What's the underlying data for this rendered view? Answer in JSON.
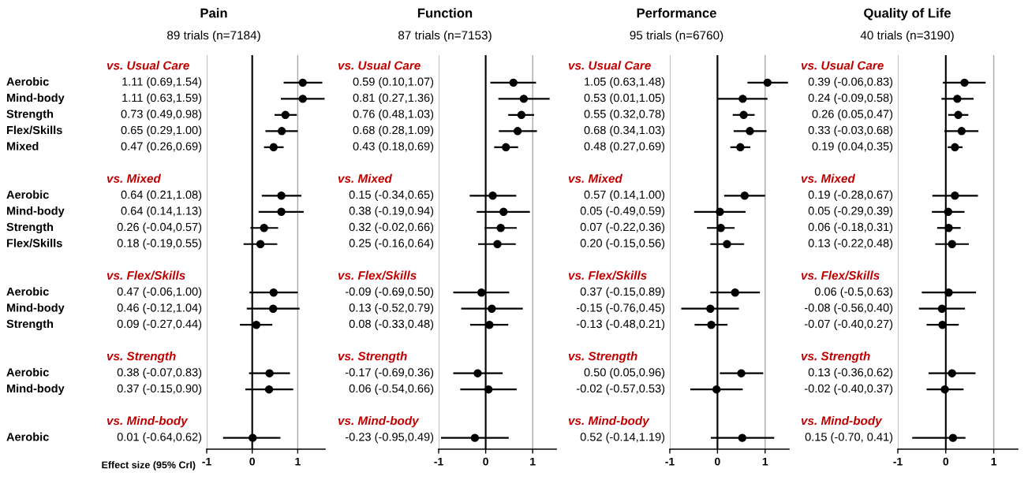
{
  "chart_data": [
    {
      "type": "scatter",
      "orientation": "horizontal",
      "title": "Pain",
      "subtitle": "89 trials (n=7184)",
      "xlabel": "Effect size (95% CrI)",
      "color": "#000000",
      "marker": "circle",
      "grid": "x",
      "tick_labels": "x",
      "xlim": [
        -1,
        1.6
      ],
      "xticks": [
        -1,
        0,
        1
      ],
      "ref_lines": [
        {
          "axis": "x",
          "value": 0,
          "color": "#000000"
        }
      ],
      "categories": [
        "vs. Usual Care",
        "Aerobic",
        "Mind-body",
        "Strength",
        "Flex/Skills",
        "Mixed",
        null,
        "vs. Mixed",
        "Aerobic",
        "Mind-body",
        "Strength",
        "Flex/Skills",
        null,
        "vs. Flex/Skills",
        "Aerobic",
        "Mind-body",
        "Strength",
        null,
        "vs. Strength",
        "Aerobic",
        "Mind-body",
        null,
        "vs. Mind-body",
        "Aerobic"
      ],
      "values": [
        null,
        1.11,
        1.11,
        0.73,
        0.65,
        0.47,
        null,
        null,
        0.64,
        0.64,
        0.26,
        0.18,
        null,
        null,
        0.47,
        0.46,
        0.09,
        null,
        null,
        0.38,
        0.37,
        null,
        null,
        0.01
      ],
      "errors": [
        null,
        [
          0.69,
          1.54
        ],
        [
          0.63,
          1.59
        ],
        [
          0.49,
          0.98
        ],
        [
          0.29,
          1.0
        ],
        [
          0.26,
          0.69
        ],
        null,
        null,
        [
          0.21,
          1.08
        ],
        [
          0.14,
          1.13
        ],
        [
          -0.04,
          0.57
        ],
        [
          -0.19,
          0.55
        ],
        null,
        null,
        [
          -0.06,
          1.0
        ],
        [
          -0.12,
          1.04
        ],
        [
          -0.27,
          0.44
        ],
        null,
        null,
        [
          -0.07,
          0.83
        ],
        [
          -0.15,
          0.9
        ],
        null,
        null,
        [
          -0.64,
          0.62
        ]
      ],
      "value_labels": [
        null,
        "1.11 (0.69,1.54)",
        "1.11 (0.63,1.59)",
        "0.73 (0.49,0.98)",
        "0.65 (0.29,1.00)",
        "0.47 (0.26,0.69)",
        null,
        null,
        "0.64 (0.21,1.08)",
        "0.64 (0.14,1.13)",
        "0.26 (-0.04,0.57)",
        "0.18 (-0.19,0.55)",
        null,
        null,
        "0.47 (-0.06,1.00)",
        "0.46 (-0.12,1.04)",
        "0.09 (-0.27,0.44)",
        null,
        null,
        "0.38 (-0.07,0.83)",
        "0.37 (-0.15,0.90)",
        null,
        null,
        "0.01 (-0.64,0.62)"
      ]
    },
    {
      "type": "scatter",
      "orientation": "horizontal",
      "title": "Function",
      "subtitle": "87 trials (n=7153)",
      "color": "#000000",
      "marker": "circle",
      "grid": "x",
      "tick_labels": "x",
      "xlim": [
        -1,
        1.5
      ],
      "xticks": [
        -1,
        0,
        1
      ],
      "ref_lines": [
        {
          "axis": "x",
          "value": 0,
          "color": "#000000"
        }
      ],
      "categories": [
        "vs. Usual Care",
        null,
        null,
        null,
        null,
        null,
        null,
        "vs. Mixed",
        null,
        null,
        null,
        null,
        null,
        "vs. Flex/Skills",
        null,
        null,
        null,
        null,
        "vs. Strength",
        null,
        null,
        null,
        "vs. Mind-body",
        null
      ],
      "values": [
        null,
        0.59,
        0.81,
        0.76,
        0.68,
        0.43,
        null,
        null,
        0.15,
        0.38,
        0.32,
        0.25,
        null,
        null,
        -0.09,
        0.13,
        0.08,
        null,
        null,
        -0.17,
        0.06,
        null,
        null,
        -0.23
      ],
      "errors": [
        null,
        [
          0.1,
          1.07
        ],
        [
          0.27,
          1.36
        ],
        [
          0.48,
          1.03
        ],
        [
          0.28,
          1.09
        ],
        [
          0.18,
          0.69
        ],
        null,
        null,
        [
          -0.34,
          0.65
        ],
        [
          -0.19,
          0.94
        ],
        [
          -0.02,
          0.66
        ],
        [
          -0.16,
          0.64
        ],
        null,
        null,
        [
          -0.69,
          0.5
        ],
        [
          -0.52,
          0.79
        ],
        [
          -0.33,
          0.48
        ],
        null,
        null,
        [
          -0.69,
          0.36
        ],
        [
          -0.54,
          0.66
        ],
        null,
        null,
        [
          -0.95,
          0.49
        ]
      ],
      "value_labels": [
        null,
        "0.59 (0.10,1.07)",
        "0.81 (0.27,1.36)",
        "0.76 (0.48,1.03)",
        "0.68 (0.28,1.09)",
        "0.43 (0.18,0.69)",
        null,
        null,
        "0.15 (-0.34,0.65)",
        "0.38 (-0.19,0.94)",
        "0.32 (-0.02,0.66)",
        "0.25 (-0.16,0.64)",
        null,
        null,
        "-0.09 (-0.69,0.50)",
        "0.13 (-0.52,0.79)",
        "0.08 (-0.33,0.48)",
        null,
        null,
        "-0.17 (-0.69,0.36)",
        "0.06 (-0.54,0.66)",
        null,
        null,
        "-0.23 (-0.95,0.49)"
      ]
    },
    {
      "type": "scatter",
      "orientation": "horizontal",
      "title": "Performance",
      "subtitle": "95 trials (n=6760)",
      "color": "#000000",
      "marker": "circle",
      "grid": "x",
      "tick_labels": "x",
      "xlim": [
        -1,
        1.5
      ],
      "xticks": [
        -1,
        0,
        1
      ],
      "ref_lines": [
        {
          "axis": "x",
          "value": 0,
          "color": "#000000"
        }
      ],
      "categories": [
        "vs. Usual Care",
        null,
        null,
        null,
        null,
        null,
        null,
        "vs. Mixed",
        null,
        null,
        null,
        null,
        null,
        "vs. Flex/Skills",
        null,
        null,
        null,
        null,
        "vs. Strength",
        null,
        null,
        null,
        "vs. Mind-body",
        null
      ],
      "values": [
        null,
        1.05,
        0.53,
        0.55,
        0.68,
        0.48,
        null,
        null,
        0.57,
        0.05,
        0.07,
        0.2,
        null,
        null,
        0.37,
        -0.15,
        -0.13,
        null,
        null,
        0.5,
        -0.02,
        null,
        null,
        0.52
      ],
      "errors": [
        null,
        [
          0.63,
          1.48
        ],
        [
          0.01,
          1.05
        ],
        [
          0.32,
          0.78
        ],
        [
          0.34,
          1.03
        ],
        [
          0.27,
          0.69
        ],
        null,
        null,
        [
          0.14,
          1.0
        ],
        [
          -0.49,
          0.59
        ],
        [
          -0.22,
          0.36
        ],
        [
          -0.15,
          0.56
        ],
        null,
        null,
        [
          -0.15,
          0.89
        ],
        [
          -0.76,
          0.45
        ],
        [
          -0.48,
          0.21
        ],
        null,
        null,
        [
          0.05,
          0.96
        ],
        [
          -0.57,
          0.53
        ],
        null,
        null,
        [
          -0.14,
          1.19
        ]
      ],
      "value_labels": [
        null,
        "1.05 (0.63,1.48)",
        "0.53 (0.01,1.05)",
        "0.55 (0.32,0.78)",
        "0.68 (0.34,1.03)",
        "0.48 (0.27,0.69)",
        null,
        null,
        "0.57 (0.14,1.00)",
        "0.05 (-0.49,0.59)",
        "0.07 (-0.22,0.36)",
        "0.20 (-0.15,0.56)",
        null,
        null,
        "0.37 (-0.15,0.89)",
        "-0.15 (-0.76,0.45)",
        "-0.13 (-0.48,0.21)",
        null,
        null,
        "0.50 (0.05,0.96)",
        "-0.02 (-0.57,0.53)",
        null,
        null,
        "0.52 (-0.14,1.19)"
      ]
    },
    {
      "type": "scatter",
      "orientation": "horizontal",
      "title": "Quality of Life",
      "subtitle": "40 trials (n=3190)",
      "color": "#000000",
      "marker": "circle",
      "grid": "x",
      "tick_labels": "x",
      "xlim": [
        -1,
        1.5
      ],
      "xticks": [
        -1,
        0,
        1
      ],
      "ref_lines": [
        {
          "axis": "x",
          "value": 0,
          "color": "#000000"
        }
      ],
      "categories": [
        "vs. Usual Care",
        null,
        null,
        null,
        null,
        null,
        null,
        "vs. Mixed",
        null,
        null,
        null,
        null,
        null,
        "vs. Flex/Skills",
        null,
        null,
        null,
        null,
        "vs. Strength",
        null,
        null,
        null,
        "vs. Mind-body",
        null
      ],
      "values": [
        null,
        0.39,
        0.24,
        0.26,
        0.33,
        0.19,
        null,
        null,
        0.19,
        0.05,
        0.06,
        0.13,
        null,
        null,
        0.06,
        -0.08,
        -0.07,
        null,
        null,
        0.13,
        -0.02,
        null,
        null,
        0.15
      ],
      "errors": [
        null,
        [
          -0.06,
          0.83
        ],
        [
          -0.09,
          0.58
        ],
        [
          0.05,
          0.47
        ],
        [
          -0.03,
          0.68
        ],
        [
          0.04,
          0.35
        ],
        null,
        null,
        [
          -0.28,
          0.67
        ],
        [
          -0.29,
          0.39
        ],
        [
          -0.18,
          0.31
        ],
        [
          -0.22,
          0.48
        ],
        null,
        null,
        [
          -0.5,
          0.63
        ],
        [
          -0.56,
          0.4
        ],
        [
          -0.4,
          0.27
        ],
        null,
        null,
        [
          -0.36,
          0.62
        ],
        [
          -0.4,
          0.37
        ],
        null,
        null,
        [
          -0.7,
          0.41
        ]
      ],
      "value_labels": [
        null,
        "0.39 (-0.06,0.83)",
        "0.24 (-0.09,0.58)",
        "0.26 (0.05,0.47)",
        "0.33 (-0.03,0.68)",
        "0.19 (0.04,0.35)",
        null,
        null,
        "0.19 (-0.28,0.67)",
        "0.05 (-0.29,0.39)",
        "0.06 (-0.18,0.31)",
        "0.13 (-0.22,0.48)",
        null,
        null,
        "0.06 (-0.5,0.63)",
        "-0.08 (-0.56,0.40)",
        "-0.07 (-0.40,0.27)",
        null,
        null,
        "0.13 (-0.36,0.62)",
        "-0.02 (-0.40,0.37)",
        null,
        null,
        "0.15 (-0.70, 0.41)"
      ]
    }
  ]
}
